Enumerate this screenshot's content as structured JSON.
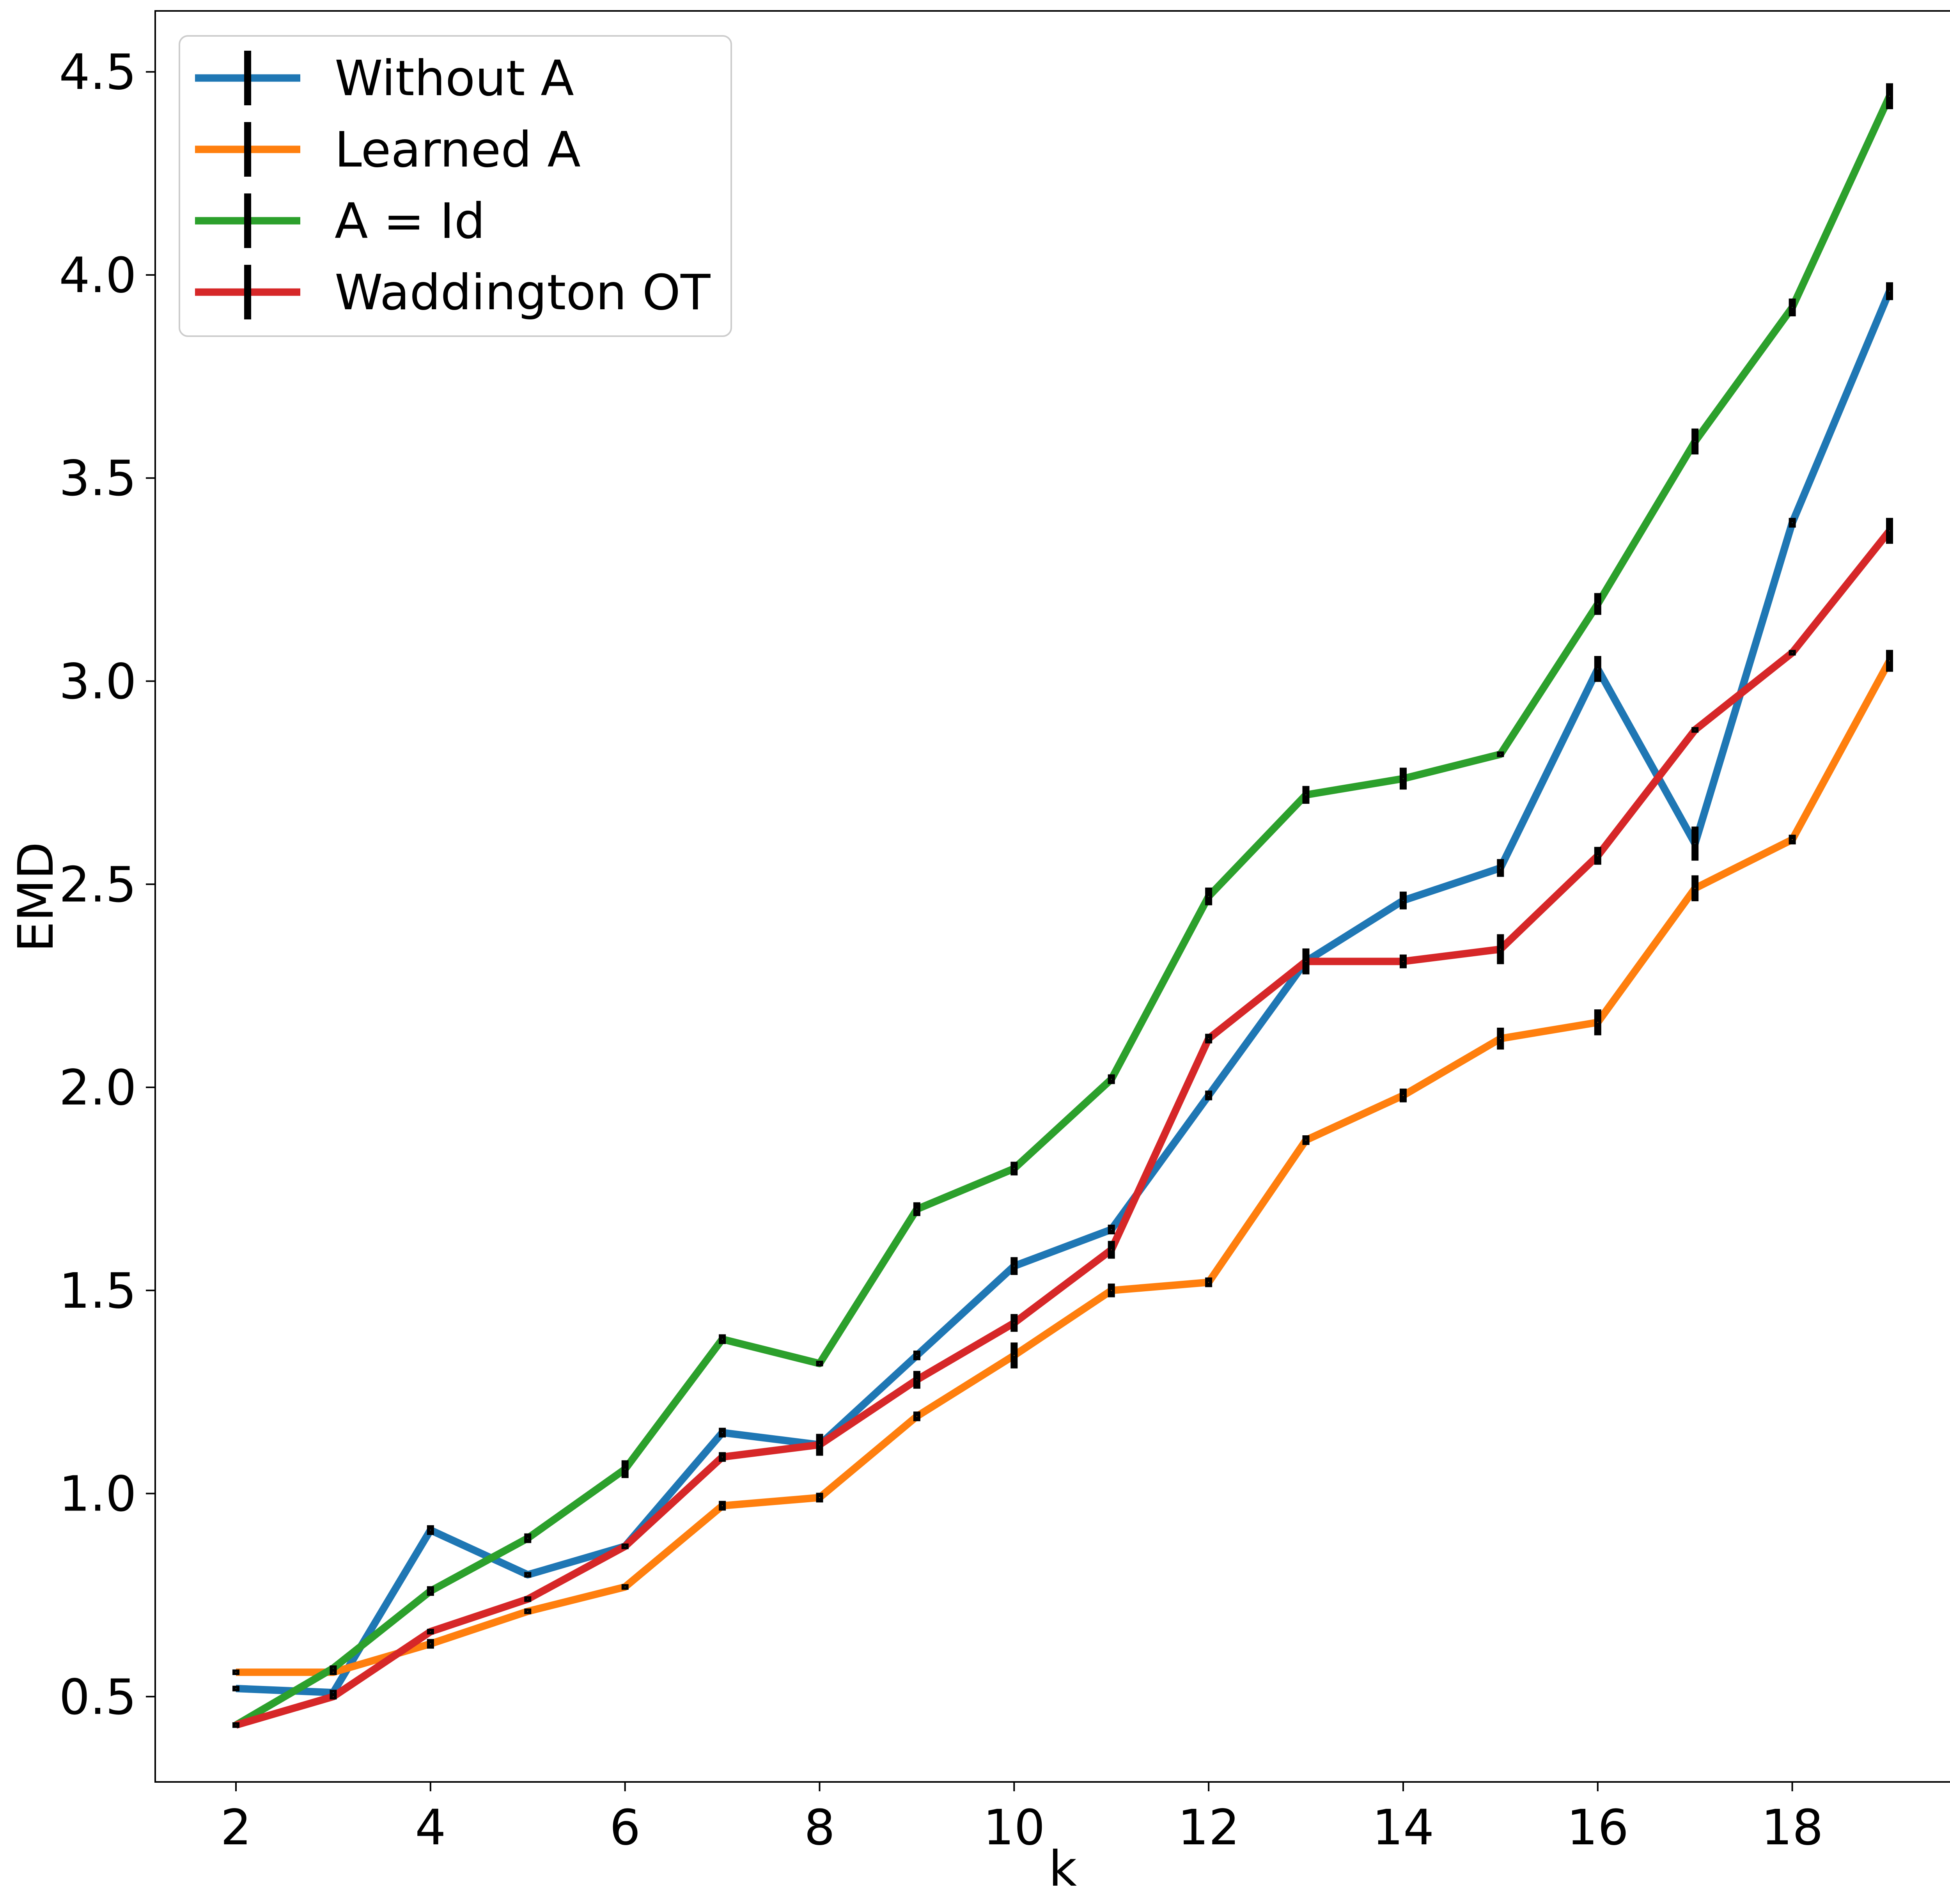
{
  "chart_data": {
    "type": "line",
    "title": "",
    "xlabel": "k",
    "ylabel": "EMD",
    "xlim": [
      1.17,
      19.83
    ],
    "ylim": [
      0.29,
      4.65
    ],
    "xticks": [
      2,
      4,
      6,
      8,
      10,
      12,
      14,
      16,
      18
    ],
    "yticks": [
      0.5,
      1.0,
      1.5,
      2.0,
      2.5,
      3.0,
      3.5,
      4.0,
      4.5
    ],
    "xtick_labels": [
      "2",
      "4",
      "6",
      "8",
      "10",
      "12",
      "14",
      "16",
      "18"
    ],
    "ytick_labels": [
      "0.5",
      "1.0",
      "1.5",
      "2.0",
      "2.5",
      "3.0",
      "3.5",
      "4.0",
      "4.5"
    ],
    "grid": false,
    "legend_position": "top-left",
    "x": [
      2,
      3,
      4,
      5,
      6,
      7,
      8,
      9,
      10,
      11,
      12,
      13,
      14,
      15,
      16,
      17,
      18,
      19
    ],
    "series": [
      {
        "name": "Without A",
        "color": "#1f77b4",
        "values": [
          0.52,
          0.51,
          0.91,
          0.8,
          0.87,
          1.15,
          1.12,
          1.34,
          1.56,
          1.65,
          1.98,
          2.31,
          2.46,
          2.54,
          3.03,
          2.6,
          3.39,
          3.96
        ],
        "errors": [
          0.005,
          0.005,
          0.01,
          0.005,
          0.005,
          0.01,
          0.01,
          0.01,
          0.02,
          0.01,
          0.01,
          0.02,
          0.02,
          0.02,
          0.03,
          0.04,
          0.01,
          0.02
        ]
      },
      {
        "name": "Learned A",
        "color": "#ff7f0e",
        "values": [
          0.56,
          0.56,
          0.63,
          0.71,
          0.77,
          0.97,
          0.99,
          1.19,
          1.34,
          1.5,
          1.52,
          1.87,
          1.98,
          2.12,
          2.16,
          2.49,
          2.61,
          3.05
        ],
        "errors": [
          0.005,
          0.005,
          0.01,
          0.005,
          0.005,
          0.01,
          0.01,
          0.01,
          0.03,
          0.015,
          0.01,
          0.01,
          0.015,
          0.025,
          0.03,
          0.03,
          0.01,
          0.025
        ]
      },
      {
        "name": "A = Id",
        "color": "#2ca02c",
        "values": [
          0.43,
          0.57,
          0.76,
          0.89,
          1.06,
          1.38,
          1.32,
          1.7,
          1.8,
          2.02,
          2.47,
          2.72,
          2.76,
          2.82,
          3.19,
          3.59,
          3.92,
          4.44
        ],
        "errors": [
          0.005,
          0.005,
          0.01,
          0.01,
          0.02,
          0.01,
          0.005,
          0.015,
          0.015,
          0.01,
          0.02,
          0.02,
          0.025,
          0.005,
          0.025,
          0.03,
          0.02,
          0.03
        ]
      },
      {
        "name": "Waddington OT",
        "color": "#d62728",
        "values": [
          0.43,
          0.5,
          0.66,
          0.74,
          0.87,
          1.09,
          1.12,
          1.28,
          1.42,
          1.6,
          2.12,
          2.31,
          2.31,
          2.34,
          2.57,
          2.88,
          3.07,
          3.37
        ],
        "errors": [
          0.005,
          0.005,
          0.005,
          0.005,
          0.005,
          0.01,
          0.025,
          0.02,
          0.02,
          0.02,
          0.01,
          0.03,
          0.015,
          0.035,
          0.02,
          0.005,
          0.005,
          0.03
        ]
      }
    ]
  }
}
